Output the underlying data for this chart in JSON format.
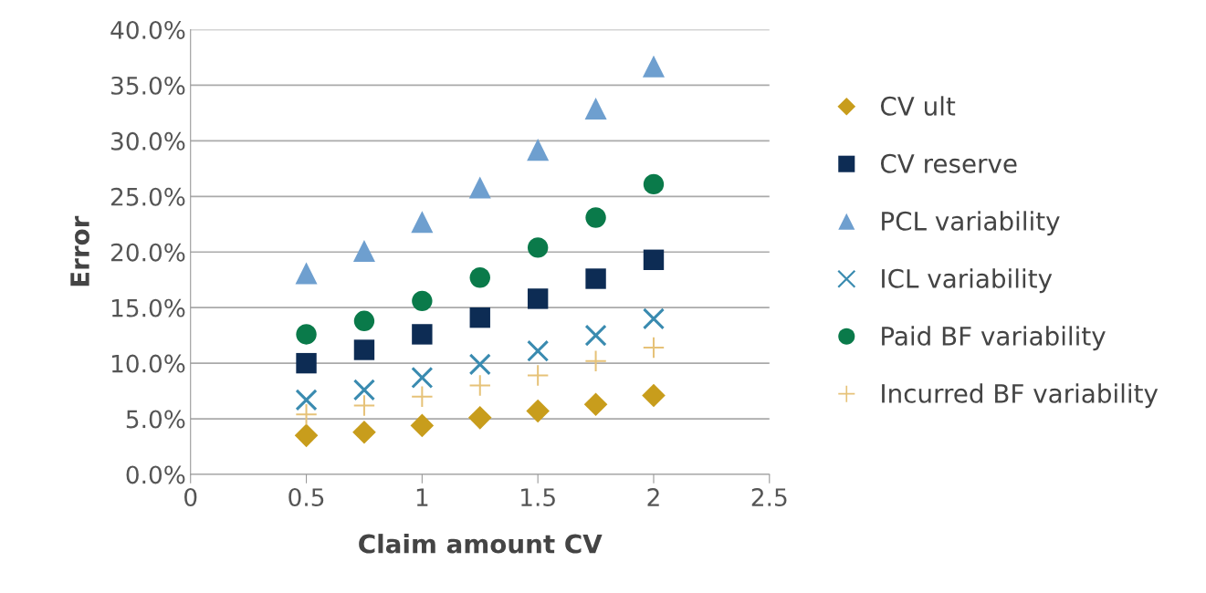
{
  "chart_data": {
    "type": "scatter",
    "xlabel": "Claim amount CV",
    "ylabel": "Error",
    "x": [
      0.5,
      0.75,
      1,
      1.25,
      1.5,
      1.75,
      2
    ],
    "series": [
      {
        "name": "CV ult",
        "color": "#c89d1c",
        "marker": "diamond",
        "values": [
          3.5,
          3.8,
          4.4,
          5.1,
          5.7,
          6.3,
          7.1
        ]
      },
      {
        "name": "CV reserve",
        "color": "#0d2c54",
        "marker": "square",
        "values": [
          10.0,
          11.2,
          12.6,
          14.1,
          15.8,
          17.6,
          19.3
        ]
      },
      {
        "name": "PCL variability",
        "color": "#6e9fcf",
        "marker": "triangle",
        "values": [
          18.1,
          20.1,
          22.7,
          25.8,
          29.2,
          32.9,
          36.7
        ]
      },
      {
        "name": "ICL variability",
        "color": "#3a8bb0",
        "marker": "cross",
        "values": [
          6.7,
          7.6,
          8.7,
          9.9,
          11.1,
          12.5,
          14.0
        ]
      },
      {
        "name": "Paid BF variability",
        "color": "#0a7a4a",
        "marker": "circle",
        "values": [
          12.6,
          13.8,
          15.6,
          17.7,
          20.4,
          23.1,
          26.1
        ]
      },
      {
        "name": "Incurred BF variability",
        "color": "#e6c278",
        "values": [
          5.4,
          6.2,
          7.0,
          8.0,
          8.9,
          10.2,
          11.4
        ]
      }
    ],
    "xlim": [
      0,
      2.5
    ],
    "xticks": [
      0,
      0.5,
      1,
      1.5,
      2,
      2.5
    ],
    "ylim": [
      0,
      40
    ],
    "yticks": [
      {
        "value": 0,
        "label": "0.0%"
      },
      {
        "value": 5,
        "label": "5.0%"
      },
      {
        "value": 10,
        "label": "10.0%"
      },
      {
        "value": 15,
        "label": "15.0%"
      },
      {
        "value": 20,
        "label": "20.0%"
      },
      {
        "value": 25,
        "label": "25.0%"
      },
      {
        "value": 30,
        "label": "30.0%"
      },
      {
        "value": 35,
        "label": "35.0%"
      },
      {
        "value": 40,
        "label": "40.0%"
      }
    ],
    "grid": "y",
    "legend": "right"
  }
}
